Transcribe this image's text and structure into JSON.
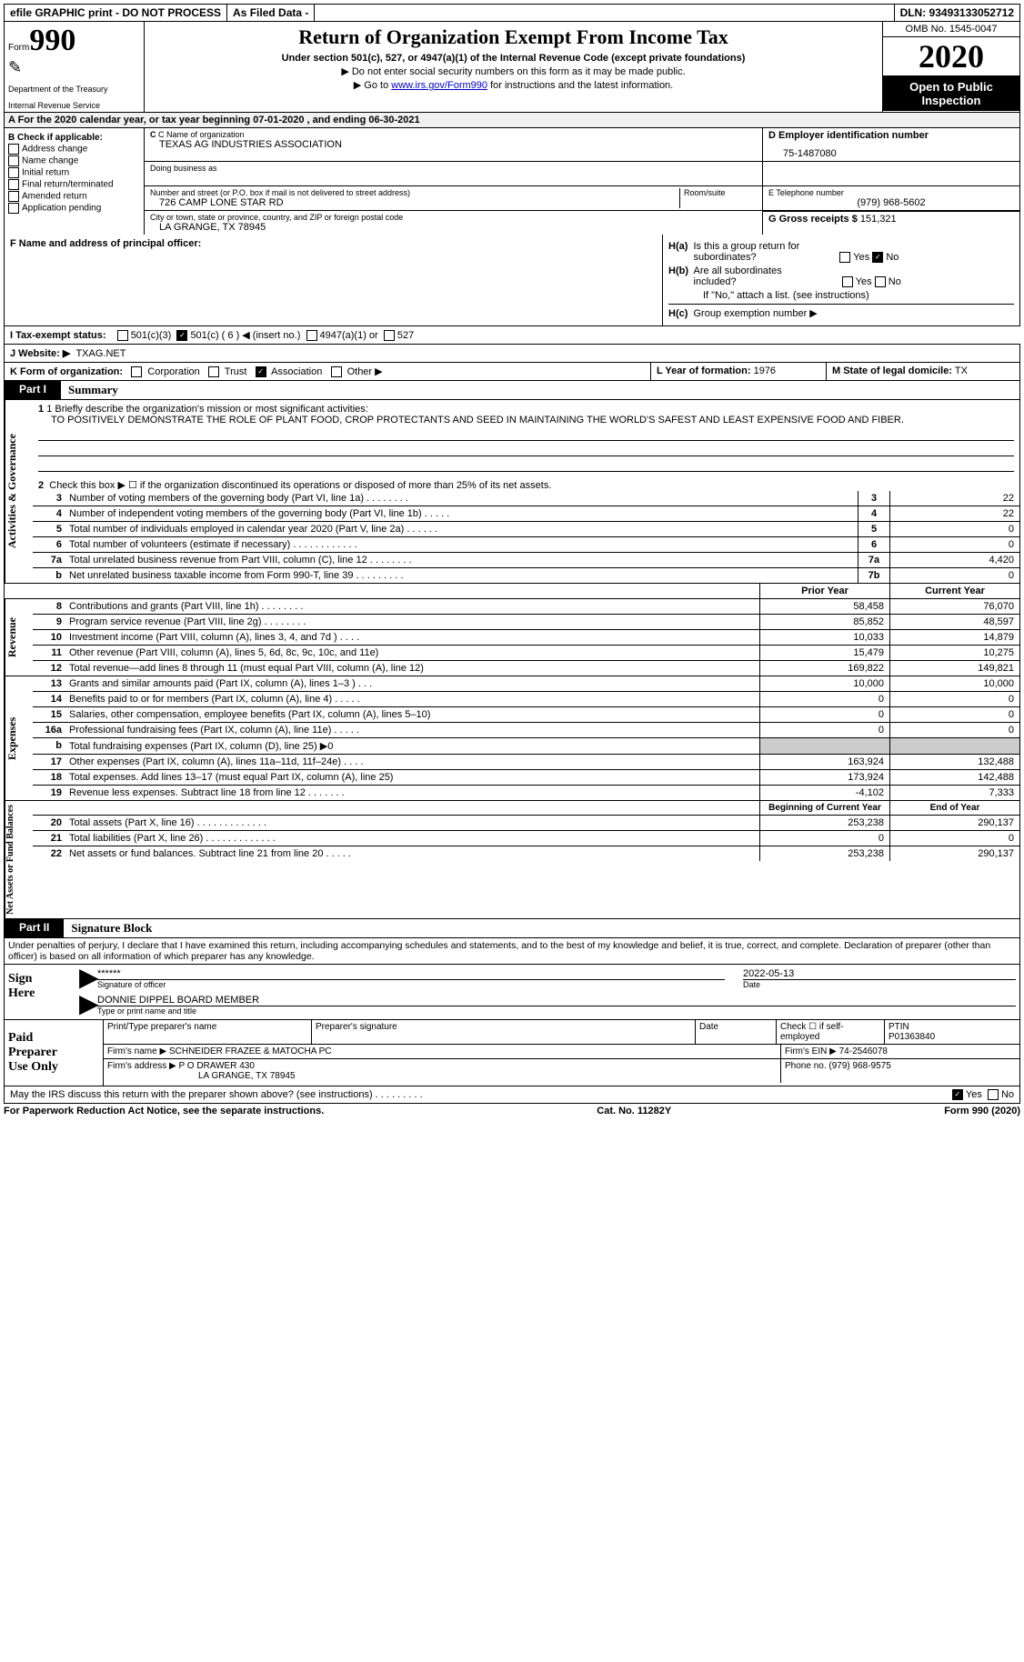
{
  "topbar": {
    "efile": "efile GRAPHIC print - DO NOT PROCESS",
    "asfiled": "As Filed Data -",
    "dln": "DLN: 93493133052712"
  },
  "header": {
    "form_label": "Form",
    "form_num": "990",
    "dept": "Department of the Treasury",
    "irs": "Internal Revenue Service",
    "title": "Return of Organization Exempt From Income Tax",
    "subtitle": "Under section 501(c), 527, or 4947(a)(1) of the Internal Revenue Code (except private foundations)",
    "instr1": "▶ Do not enter social security numbers on this form as it may be made public.",
    "instr2_pre": "▶ Go to ",
    "instr2_link": "www.irs.gov/Form990",
    "instr2_post": " for instructions and the latest information.",
    "omb": "OMB No. 1545-0047",
    "year": "2020",
    "open": "Open to Public Inspection"
  },
  "row_a": "A   For the 2020 calendar year, or tax year beginning 07-01-2020   , and ending 06-30-2021",
  "col_b": {
    "title": "B Check if applicable:",
    "items": [
      "Address change",
      "Name change",
      "Initial return",
      "Final return/terminated",
      "Amended return",
      "Application pending"
    ]
  },
  "cd": {
    "c_name_lbl": "C Name of organization",
    "c_name": "TEXAS AG INDUSTRIES ASSOCIATION",
    "dba_lbl": "Doing business as",
    "dba": "",
    "street_lbl": "Number and street (or P.O. box if mail is not delivered to street address)",
    "room_lbl": "Room/suite",
    "street": "726 CAMP LONE STAR RD",
    "city_lbl": "City or town, state or province, country, and ZIP or foreign postal code",
    "city": "LA GRANGE, TX  78945",
    "d_lbl": "D Employer identification number",
    "d_val": "75-1487080",
    "e_lbl": "E Telephone number",
    "e_val": "(979) 968-5602",
    "g_lbl": "G Gross receipts $",
    "g_val": "151,321"
  },
  "f": {
    "lbl": "F  Name and address of principal officer:"
  },
  "h": {
    "a_lbl": "H(a)  Is this a group return for subordinates?",
    "b_lbl": "H(b)  Are all subordinates included?",
    "b_note": "If \"No,\" attach a list. (see instructions)",
    "c_lbl": "H(c)  Group exemption number ▶"
  },
  "tax_exempt": {
    "lbl": "I   Tax-exempt status:",
    "o501c3": "501(c)(3)",
    "o501c": "501(c) ( 6 ) ◀ (insert no.)",
    "o4947": "4947(a)(1) or",
    "o527": "527"
  },
  "website": {
    "lbl": "J   Website: ▶",
    "val": "TXAG.NET"
  },
  "k": {
    "lbl": "K Form of organization:",
    "corp": "Corporation",
    "trust": "Trust",
    "assoc": "Association",
    "other": "Other ▶"
  },
  "l": {
    "lbl": "L Year of formation:",
    "val": "1976"
  },
  "m": {
    "lbl": "M State of legal domicile:",
    "val": "TX"
  },
  "part1": {
    "tab": "Part I",
    "title": "Summary"
  },
  "mission": {
    "q": "1 Briefly describe the organization's mission or most significant activities:",
    "text": "TO POSITIVELY DEMONSTRATE THE ROLE OF PLANT FOOD, CROP PROTECTANTS AND SEED IN MAINTAINING THE WORLD'S SAFEST AND LEAST EXPENSIVE FOOD AND FIBER."
  },
  "gov": {
    "vtab": "Activities & Governance",
    "r2": "Check this box ▶ ☐ if the organization discontinued its operations or disposed of more than 25% of its net assets.",
    "rows": [
      {
        "n": "3",
        "d": "Number of voting members of the governing body (Part VI, line 1a)   .    .    .    .    .    .    .    .",
        "b": "3",
        "v": "22"
      },
      {
        "n": "4",
        "d": "Number of independent voting members of the governing body (Part VI, line 1b)   .    .    .    .    .",
        "b": "4",
        "v": "22"
      },
      {
        "n": "5",
        "d": "Total number of individuals employed in calendar year 2020 (Part V, line 2a)   .    .    .    .    .    .",
        "b": "5",
        "v": "0"
      },
      {
        "n": "6",
        "d": "Total number of volunteers (estimate if necessary)   .    .    .    .    .    .    .    .    .    .    .    .",
        "b": "6",
        "v": "0"
      },
      {
        "n": "7a",
        "d": "Total unrelated business revenue from Part VIII, column (C), line 12   .    .    .    .    .    .    .    .",
        "b": "7a",
        "v": "4,420"
      },
      {
        "n": "b",
        "d": "Net unrelated business taxable income from Form 990-T, line 39   .    .    .    .    .    .    .    .    .",
        "b": "7b",
        "v": "0"
      }
    ]
  },
  "yrheaders": {
    "prior": "Prior Year",
    "curr": "Current Year"
  },
  "rev": {
    "vtab": "Revenue",
    "rows": [
      {
        "n": "8",
        "d": "Contributions and grants (Part VIII, line 1h)   .    .    .    .    .    .    .    .",
        "p": "58,458",
        "c": "76,070"
      },
      {
        "n": "9",
        "d": "Program service revenue (Part VIII, line 2g)   .    .    .    .    .    .    .    .",
        "p": "85,852",
        "c": "48,597"
      },
      {
        "n": "10",
        "d": "Investment income (Part VIII, column (A), lines 3, 4, and 7d )   .    .    .    .",
        "p": "10,033",
        "c": "14,879"
      },
      {
        "n": "11",
        "d": "Other revenue (Part VIII, column (A), lines 5, 6d, 8c, 9c, 10c, and 11e)",
        "p": "15,479",
        "c": "10,275"
      },
      {
        "n": "12",
        "d": "Total revenue—add lines 8 through 11 (must equal Part VIII, column (A), line 12)",
        "p": "169,822",
        "c": "149,821"
      }
    ]
  },
  "exp": {
    "vtab": "Expenses",
    "rows": [
      {
        "n": "13",
        "d": "Grants and similar amounts paid (Part IX, column (A), lines 1–3 )   .    .    .",
        "p": "10,000",
        "c": "10,000"
      },
      {
        "n": "14",
        "d": "Benefits paid to or for members (Part IX, column (A), line 4)   .    .    .    .    .",
        "p": "0",
        "c": "0"
      },
      {
        "n": "15",
        "d": "Salaries, other compensation, employee benefits (Part IX, column (A), lines 5–10)",
        "p": "0",
        "c": "0"
      },
      {
        "n": "16a",
        "d": "Professional fundraising fees (Part IX, column (A), line 11e)   .    .    .    .    .",
        "p": "0",
        "c": "0"
      },
      {
        "n": "b",
        "d": "Total fundraising expenses (Part IX, column (D), line 25) ▶0",
        "p": "",
        "c": ""
      },
      {
        "n": "17",
        "d": "Other expenses (Part IX, column (A), lines 11a–11d, 11f–24e)   .    .    .    .",
        "p": "163,924",
        "c": "132,488"
      },
      {
        "n": "18",
        "d": "Total expenses. Add lines 13–17 (must equal Part IX, column (A), line 25)",
        "p": "173,924",
        "c": "142,488"
      },
      {
        "n": "19",
        "d": "Revenue less expenses. Subtract line 18 from line 12   .    .    .    .    .    .    .",
        "p": "-4,102",
        "c": "7,333"
      }
    ]
  },
  "net": {
    "vtab": "Net Assets or Fund Balances",
    "hdr_b": "Beginning of Current Year",
    "hdr_e": "End of Year",
    "rows": [
      {
        "n": "20",
        "d": "Total assets (Part X, line 16)   .    .    .    .    .    .    .    .    .    .    .    .    .",
        "p": "253,238",
        "c": "290,137"
      },
      {
        "n": "21",
        "d": "Total liabilities (Part X, line 26)   .    .    .    .    .    .    .    .    .    .    .    .    .",
        "p": "0",
        "c": "0"
      },
      {
        "n": "22",
        "d": "Net assets or fund balances. Subtract line 21 from line 20   .    .    .    .    .",
        "p": "253,238",
        "c": "290,137"
      }
    ]
  },
  "part2": {
    "tab": "Part II",
    "title": "Signature Block",
    "decl": "Under penalties of perjury, I declare that I have examined this return, including accompanying schedules and statements, and to the best of my knowledge and belief, it is true, correct, and complete. Declaration of preparer (other than officer) is based on all information of which preparer has any knowledge."
  },
  "sign": {
    "lbl": "Sign Here",
    "stars": "******",
    "sig_lbl": "Signature of officer",
    "date": "2022-05-13",
    "date_lbl": "Date",
    "name": "DONNIE DIPPEL BOARD MEMBER",
    "name_lbl": "Type or print name and title"
  },
  "prep": {
    "lbl": "Paid Preparer Use Only",
    "h1": "Print/Type preparer's name",
    "h2": "Preparer's signature",
    "h3": "Date",
    "h4": "Check ☐ if self-employed",
    "h5_lbl": "PTIN",
    "h5": "P01363840",
    "firm_lbl": "Firm's name     ▶",
    "firm": "SCHNEIDER FRAZEE & MATOCHA PC",
    "ein_lbl": "Firm's EIN ▶",
    "ein": "74-2546078",
    "addr_lbl": "Firm's address ▶",
    "addr1": "P O DRAWER 430",
    "addr2": "LA GRANGE, TX  78945",
    "phone_lbl": "Phone no.",
    "phone": "(979) 968-9575"
  },
  "discuss": "May the IRS discuss this return with the preparer shown above? (see instructions)   .    .    .    .    .    .    .    .    .",
  "footer": {
    "l": "For Paperwork Reduction Act Notice, see the separate instructions.",
    "m": "Cat. No. 11282Y",
    "r": "Form 990 (2020)"
  }
}
